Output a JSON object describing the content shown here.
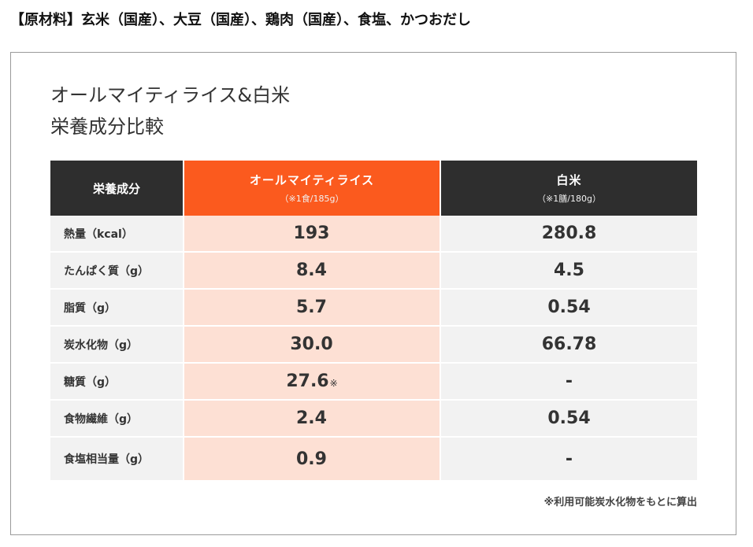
{
  "ingredients": "【原材料】玄米（国産）、大豆（国産）、鶏肉（国産）、食塩、かつおだし",
  "title": {
    "line1": "オールマイティライス&白米",
    "line2": "栄養成分比較"
  },
  "table": {
    "header": {
      "nutrient": "栄養成分",
      "allmighty_name": "オールマイティライス",
      "allmighty_serving": "（※1食/185g）",
      "rice_name": "白米",
      "rice_serving": "（※1膳/180g）"
    },
    "rows": [
      {
        "label": "熱量（kcal）",
        "allmighty": "193",
        "allmighty_note": "",
        "rice": "280.8"
      },
      {
        "label": "たんぱく質（g）",
        "allmighty": "8.4",
        "allmighty_note": "",
        "rice": "4.5"
      },
      {
        "label": "脂質（g）",
        "allmighty": "5.7",
        "allmighty_note": "",
        "rice": "0.54"
      },
      {
        "label": "炭水化物（g）",
        "allmighty": "30.0",
        "allmighty_note": "",
        "rice": "66.78"
      },
      {
        "label": "糖質（g）",
        "allmighty": "27.6",
        "allmighty_note": "※",
        "rice": "-"
      },
      {
        "label": "食物繊維（g）",
        "allmighty": "2.4",
        "allmighty_note": "",
        "rice": "0.54"
      },
      {
        "label": "食塩相当量（g）",
        "allmighty": "0.9",
        "allmighty_note": "",
        "rice": "-"
      }
    ]
  },
  "footnote": "※利用可能炭水化物をもとに算出",
  "colors": {
    "accent_orange": "#fb5a1e",
    "highlight_pink": "#fde0d4",
    "header_dark": "#2e2e2e",
    "row_gray": "#f2f2f2"
  }
}
